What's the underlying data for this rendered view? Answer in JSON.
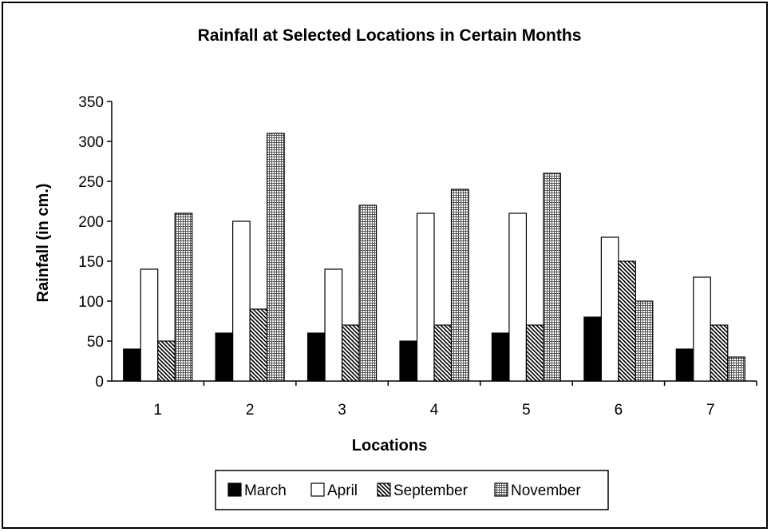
{
  "chart_data": {
    "type": "bar",
    "title": "Rainfall at Selected Locations in Certain Months",
    "xlabel": "Locations",
    "ylabel": "Rainfall (in cm.)",
    "ylim": [
      0,
      350
    ],
    "yticks": [
      0,
      50,
      100,
      150,
      200,
      250,
      300,
      350
    ],
    "categories": [
      "1",
      "2",
      "3",
      "4",
      "5",
      "6",
      "7"
    ],
    "grid": false,
    "legend_position": "bottom",
    "series": [
      {
        "name": "March",
        "fill": "solid-black",
        "values": [
          40,
          60,
          60,
          50,
          60,
          80,
          40
        ]
      },
      {
        "name": "April",
        "fill": "white",
        "values": [
          140,
          200,
          140,
          210,
          210,
          180,
          130
        ]
      },
      {
        "name": "September",
        "fill": "diagonal-hatch",
        "values": [
          50,
          90,
          70,
          70,
          70,
          150,
          70
        ]
      },
      {
        "name": "November",
        "fill": "dotted-grid",
        "values": [
          210,
          310,
          220,
          240,
          260,
          100,
          30
        ]
      }
    ]
  }
}
